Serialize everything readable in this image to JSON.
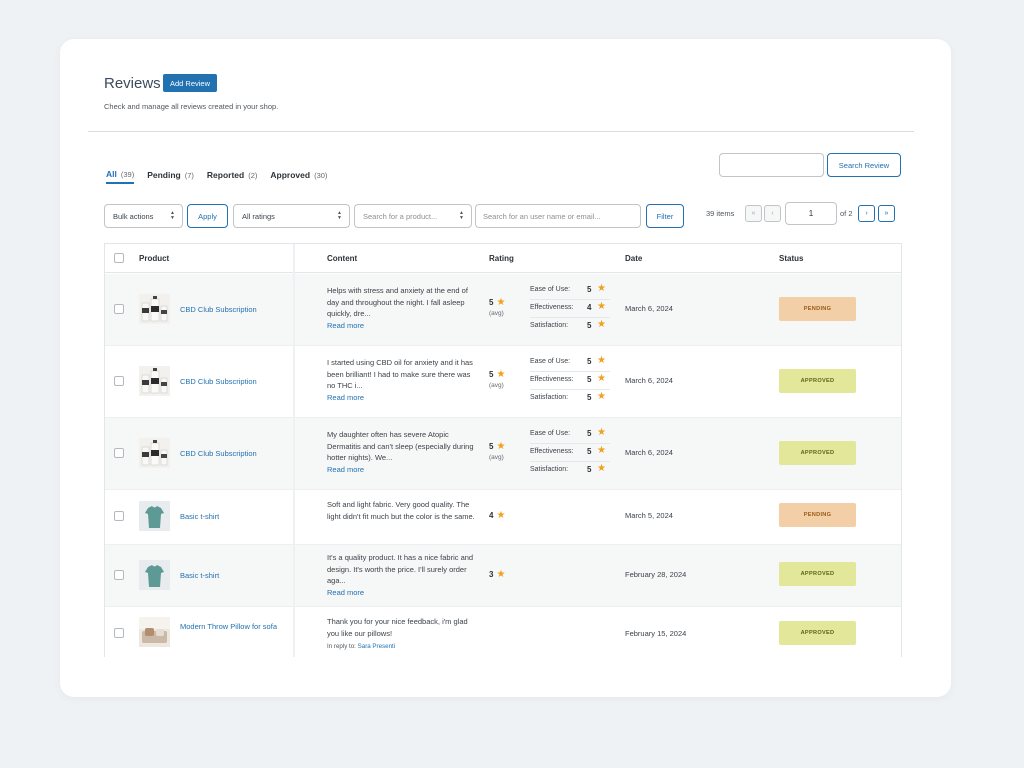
{
  "header": {
    "title": "Reviews",
    "add_button": "Add Review",
    "subtitle": "Check and manage all reviews created in your shop."
  },
  "tabs": [
    {
      "label": "All",
      "count": "(39)",
      "active": true
    },
    {
      "label": "Pending",
      "count": "(7)"
    },
    {
      "label": "Reported",
      "count": "(2)"
    },
    {
      "label": "Approved",
      "count": "(30)"
    }
  ],
  "search": {
    "placeholder": "",
    "button": "Search Review"
  },
  "filters": {
    "bulk_actions": "Bulk actions",
    "apply": "Apply",
    "ratings": "All ratings",
    "product_placeholder": "Search for a product...",
    "user_placeholder": "Search for an user name or email...",
    "filter": "Filter"
  },
  "pagination": {
    "items": "39 items",
    "first": "«",
    "prev": "‹",
    "next": "›",
    "last": "»",
    "current": "1",
    "of": "of 2"
  },
  "table": {
    "headers": {
      "product": "Product",
      "content": "Content",
      "rating": "Rating",
      "date": "Date",
      "status": "Status"
    },
    "rows": [
      {
        "product": "CBD Club Subscription",
        "thumb": "cbd-bottles-icon",
        "content": "Helps with stress and anxiety at the end of day and throughout the night. I fall asleep quickly, dre...",
        "read_more": "Read more",
        "rating": "5",
        "avg": "(avg)",
        "criteria": [
          {
            "label": "Ease of Use:",
            "value": "5"
          },
          {
            "label": "Effectiveness:",
            "value": "4"
          },
          {
            "label": "Satisfaction:",
            "value": "5"
          }
        ],
        "date": "March 6, 2024",
        "status": "PENDING"
      },
      {
        "product": "CBD Club Subscription",
        "thumb": "cbd-bottles-icon",
        "content": "I started using CBD oil for anxiety and it has been brilliant! I had to make sure there was no THC i...",
        "read_more": "Read more",
        "rating": "5",
        "avg": "(avg)",
        "criteria": [
          {
            "label": "Ease of Use:",
            "value": "5"
          },
          {
            "label": "Effectiveness:",
            "value": "5"
          },
          {
            "label": "Satisfaction:",
            "value": "5"
          }
        ],
        "date": "March 6, 2024",
        "status": "APPROVED"
      },
      {
        "product": "CBD Club Subscription",
        "thumb": "cbd-bottles-icon",
        "content": "My daughter often has severe Atopic Dermatitis and can't sleep (especially during hotter nights). We...",
        "read_more": "Read more",
        "rating": "5",
        "avg": "(avg)",
        "criteria": [
          {
            "label": "Ease of Use:",
            "value": "5"
          },
          {
            "label": "Effectiveness:",
            "value": "5"
          },
          {
            "label": "Satisfaction:",
            "value": "5"
          }
        ],
        "date": "March 6, 2024",
        "status": "APPROVED"
      },
      {
        "product": "Basic t-shirt",
        "thumb": "tshirt-icon",
        "content": "Soft and light fabric. Very good quality. The light didn't fit much but the color is the same.",
        "rating": "4",
        "date": "March 5, 2024",
        "status": "PENDING"
      },
      {
        "product": "Basic t-shirt",
        "thumb": "tshirt-icon",
        "content": "It's a quality product. It has a nice fabric and design. It's worth the price. I'll surely order aga...",
        "read_more": "Read more",
        "rating": "3",
        "date": "February 28, 2024",
        "status": "APPROVED"
      },
      {
        "product": "Modern Throw Pillow for sofa",
        "thumb": "pillow-icon",
        "content": "Thank you for your nice feedback, i'm glad you like our pillows!",
        "reply_prefix": "In reply to:",
        "reply_name": "Sara Presenti",
        "date": "February 15, 2024",
        "status": "APPROVED"
      }
    ]
  },
  "colors": {
    "accent": "#2271b1",
    "pending_bg": "#f3cfa8",
    "pending_text": "#9a5a16",
    "approved_bg": "#e2e79a",
    "approved_text": "#5b6418",
    "star": "#f0a01e"
  }
}
